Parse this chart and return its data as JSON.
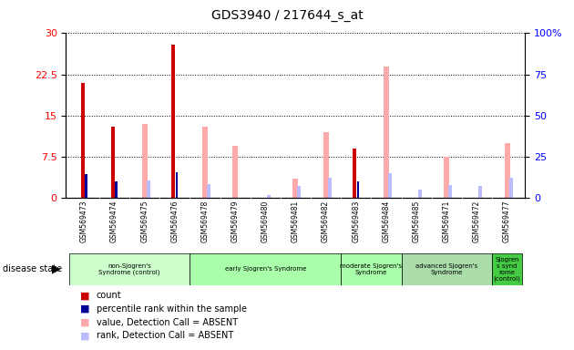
{
  "title": "GDS3940 / 217644_s_at",
  "samples": [
    "GSM569473",
    "GSM569474",
    "GSM569475",
    "GSM569476",
    "GSM569478",
    "GSM569479",
    "GSM569480",
    "GSM569481",
    "GSM569482",
    "GSM569483",
    "GSM569484",
    "GSM569485",
    "GSM569471",
    "GSM569472",
    "GSM569477"
  ],
  "count": [
    21,
    13,
    null,
    28,
    null,
    null,
    null,
    null,
    null,
    9,
    null,
    null,
    null,
    null,
    null
  ],
  "percentile_rank": [
    14.5,
    10,
    null,
    15.5,
    null,
    null,
    null,
    null,
    null,
    10,
    null,
    null,
    null,
    null,
    null
  ],
  "value_absent": [
    null,
    null,
    13.5,
    null,
    13,
    9.5,
    null,
    3.5,
    12,
    null,
    24,
    null,
    7.5,
    null,
    10
  ],
  "rank_absent": [
    null,
    null,
    10.5,
    null,
    8.5,
    null,
    1.5,
    7,
    12,
    null,
    15,
    5,
    7.5,
    7,
    12
  ],
  "ylim_left": [
    0,
    30
  ],
  "ylim_right": [
    0,
    100
  ],
  "yticks_left": [
    0,
    7.5,
    15,
    22.5,
    30
  ],
  "yticks_right": [
    0,
    25,
    50,
    75,
    100
  ],
  "group_labels": [
    "non-Sjogren's\nSyndrome (control)",
    "early Sjogren's Syndrome",
    "moderate Sjogren's\nSyndrome",
    "advanced Sjogren's\nSyndrome",
    "Sjogren\ns synd\nrome\n(control)"
  ],
  "group_ranges": [
    [
      0,
      3
    ],
    [
      4,
      8
    ],
    [
      9,
      10
    ],
    [
      11,
      13
    ],
    [
      14,
      14
    ]
  ],
  "group_colors": [
    "#ccffcc",
    "#aaffaa",
    "#aaffaa",
    "#99ee99",
    "#55cc55"
  ],
  "color_count": "#cc0000",
  "color_percentile": "#000099",
  "color_value_absent": "#ffaaaa",
  "color_rank_absent": "#bbbbff",
  "plot_bg": "#ffffff",
  "xticklabel_bg": "#dddddd"
}
